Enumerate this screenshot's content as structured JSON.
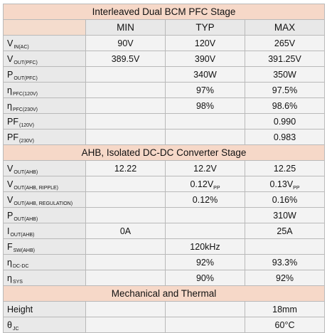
{
  "sections": [
    {
      "title": "Interleaved Dual BCM PFC Stage",
      "columns": [
        "MIN",
        "TYP",
        "MAX"
      ],
      "rows": [
        {
          "sym": "V",
          "sub": "IN(AC)",
          "min": "90V",
          "typ": "120V",
          "max": "265V"
        },
        {
          "sym": "V",
          "sub": "OUT(PFC)",
          "min": "389.5V",
          "typ": "390V",
          "max": "391.25V"
        },
        {
          "sym": "P",
          "sub": "OUT(PFC)",
          "min": "",
          "typ": "340W",
          "max": "350W"
        },
        {
          "sym": "η",
          "sub": "PFC(120V)",
          "min": "",
          "typ": "97%",
          "max": "97.5%"
        },
        {
          "sym": "η",
          "sub": "PFC(230V)",
          "min": "",
          "typ": "98%",
          "max": "98.6%"
        },
        {
          "sym": "PF",
          "sub": "(120V)",
          "min": "",
          "typ": "",
          "max": "0.990"
        },
        {
          "sym": "PF",
          "sub": "(230V)",
          "min": "",
          "typ": "",
          "max": "0.983"
        }
      ]
    },
    {
      "title": "AHB, Isolated DC-DC Converter Stage",
      "rows": [
        {
          "sym": "V",
          "sub": "OUT(AHB)",
          "min": "12.22",
          "typ": "12.2V",
          "max": "12.25"
        },
        {
          "sym": "V",
          "sub": "OUT(AHB, RIPPLE)",
          "min": "",
          "typ": "0.12V",
          "typ_sub": "PP",
          "max": "0.13V",
          "max_sub": "PP"
        },
        {
          "sym": "V",
          "sub": "OUT(AHB, REGULATION)",
          "min": "",
          "typ": "0.12%",
          "max": "0.16%"
        },
        {
          "sym": "P",
          "sub": "OUT(AHB)",
          "min": "",
          "typ": "",
          "max": "310W"
        },
        {
          "sym": "I",
          "sub": "OUT(AHB)",
          "min": "0A",
          "typ": "",
          "max": "25A"
        },
        {
          "sym": "F",
          "sub": "SW(AHB)",
          "min": "",
          "typ": "120kHz",
          "max": ""
        },
        {
          "sym": "η",
          "sub": "DC-DC",
          "min": "",
          "typ": "92%",
          "max": "93.3%"
        },
        {
          "sym": "η",
          "sub": "SYS",
          "min": "",
          "typ": "90%",
          "max": "92%"
        }
      ]
    },
    {
      "title": "Mechanical and Thermal",
      "rows": [
        {
          "sym": "Height",
          "sub": "",
          "min": "",
          "typ": "",
          "max": "18mm"
        },
        {
          "sym": "θ",
          "sub": "JC",
          "min": "",
          "typ": "",
          "max": "60°C"
        }
      ]
    }
  ]
}
